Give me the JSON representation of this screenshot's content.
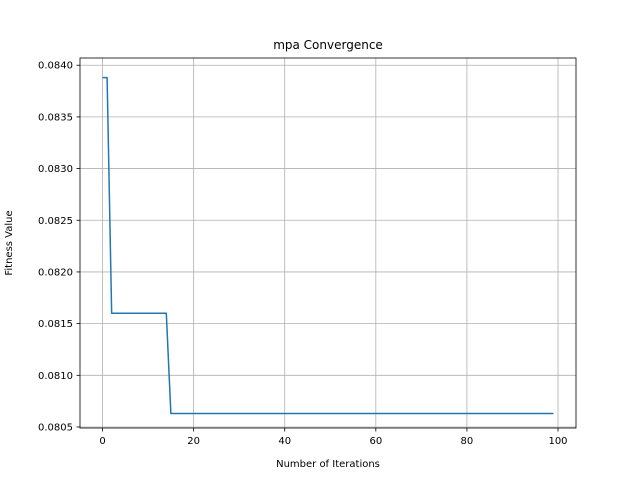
{
  "chart_data": {
    "type": "line",
    "title": "mpa Convergence",
    "xlabel": "Number of Iterations",
    "ylabel": "Fitness Value",
    "xlim": [
      -4.95,
      103.95
    ],
    "ylim": [
      0.08049,
      0.08407
    ],
    "grid": true,
    "x_ticks": [
      0,
      20,
      40,
      60,
      80,
      100
    ],
    "x_tick_labels": [
      "0",
      "20",
      "40",
      "60",
      "80",
      "100"
    ],
    "y_ticks": [
      0.0805,
      0.081,
      0.0815,
      0.082,
      0.0825,
      0.083,
      0.0835,
      0.084
    ],
    "y_tick_labels": [
      "0.0805",
      "0.0810",
      "0.0815",
      "0.0820",
      "0.0825",
      "0.0830",
      "0.0835",
      "0.0840"
    ],
    "series": [
      {
        "color": "#1f77b4",
        "x": [
          0,
          1,
          2,
          14,
          15,
          99
        ],
        "y": [
          0.08388,
          0.08388,
          0.0816,
          0.0816,
          0.08063,
          0.08063
        ]
      }
    ]
  }
}
